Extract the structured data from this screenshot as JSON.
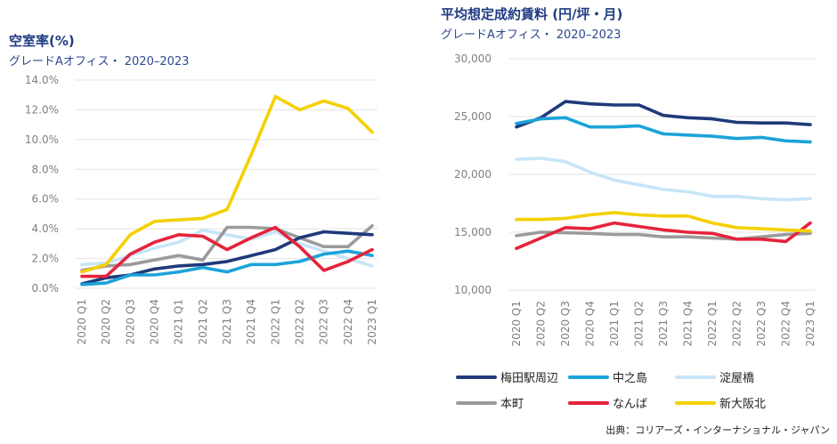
{
  "source_note": "出典：コリアーズ・インターナショナル・ジャパン",
  "colors": {
    "umeda": "#1f3a7a",
    "nakanoshima": "#1ba3d9",
    "yodoyabashi": "#c7e6f7",
    "honmachi": "#9b9b9b",
    "namba": "#e5233b",
    "shinosakakita": "#f5d000",
    "grid": "#e3e3e3",
    "axis_text": "#808080"
  },
  "chart_data": [
    {
      "type": "line",
      "title": "空室率(%)",
      "subtitle": "グレードAオフィス・ 2020–2023",
      "categories": [
        "2020 Q1",
        "2020 Q2",
        "2020 Q3",
        "2020 Q4",
        "2021 Q1",
        "2021 Q2",
        "2021 Q3",
        "2021 Q4",
        "2022 Q1",
        "2022 Q2",
        "2022 Q3",
        "2022 Q4",
        "2023 Q1"
      ],
      "ylim": [
        0,
        14
      ],
      "yticks": [
        0,
        2,
        4,
        6,
        8,
        10,
        12,
        14
      ],
      "ytick_labels": [
        "0.0%",
        "2.0%",
        "4.0%",
        "6.0%",
        "8.0%",
        "10.0%",
        "12.0%",
        "14.0%"
      ],
      "grid": true,
      "series": [
        {
          "key": "yodoyabashi",
          "name": "淀屋橋",
          "values": [
            1.6,
            1.7,
            2.2,
            2.7,
            3.1,
            3.9,
            3.6,
            3.3,
            3.8,
            3.0,
            2.5,
            2.0,
            1.5
          ]
        },
        {
          "key": "honmachi",
          "name": "本町",
          "values": [
            1.2,
            1.5,
            1.6,
            1.9,
            2.2,
            1.9,
            4.1,
            4.1,
            4.0,
            3.4,
            2.8,
            2.8,
            4.2
          ]
        },
        {
          "key": "umeda",
          "name": "梅田駅周辺",
          "values": [
            0.3,
            0.7,
            0.9,
            1.3,
            1.5,
            1.6,
            1.8,
            2.2,
            2.6,
            3.4,
            3.8,
            3.7,
            3.6
          ]
        },
        {
          "key": "nakanoshima",
          "name": "中之島",
          "values": [
            0.25,
            0.35,
            0.9,
            0.9,
            1.1,
            1.4,
            1.1,
            1.6,
            1.6,
            1.8,
            2.3,
            2.5,
            2.2
          ]
        },
        {
          "key": "namba",
          "name": "なんば",
          "values": [
            0.8,
            0.8,
            2.3,
            3.1,
            3.6,
            3.5,
            2.6,
            3.4,
            4.1,
            2.8,
            1.2,
            1.8,
            2.6
          ]
        },
        {
          "key": "shinosakakita",
          "name": "新大阪北",
          "values": [
            1.1,
            1.6,
            3.6,
            4.5,
            4.6,
            4.7,
            5.3,
            9.0,
            12.9,
            12.0,
            12.6,
            12.1,
            10.5
          ]
        }
      ]
    },
    {
      "type": "line",
      "title": "平均想定成約賃料 (円/坪・月)",
      "subtitle": "グレードAオフィス・ 2020–2023",
      "categories": [
        "2020 Q1",
        "2020 Q2",
        "2020 Q3",
        "2020 Q4",
        "2021 Q1",
        "2021 Q2",
        "2021 Q3",
        "2021 Q4",
        "2022 Q1",
        "2022 Q2",
        "2022 Q3",
        "2022 Q4",
        "2023 Q1"
      ],
      "ylim": [
        10000,
        30000
      ],
      "yticks": [
        10000,
        15000,
        20000,
        25000,
        30000
      ],
      "ytick_labels": [
        "10,000",
        "15,000",
        "20,000",
        "25,000",
        "30,000"
      ],
      "grid": true,
      "series": [
        {
          "key": "yodoyabashi",
          "name": "淀屋橋",
          "values": [
            21300,
            21400,
            21100,
            20200,
            19500,
            19100,
            18700,
            18500,
            18100,
            18100,
            17900,
            17800,
            17900
          ]
        },
        {
          "key": "honmachi",
          "name": "本町",
          "values": [
            14700,
            15000,
            14950,
            14900,
            14800,
            14800,
            14600,
            14600,
            14500,
            14400,
            14600,
            14800,
            14900
          ]
        },
        {
          "key": "umeda",
          "name": "梅田駅周辺",
          "values": [
            24100,
            24900,
            26300,
            26100,
            26000,
            26000,
            25100,
            24900,
            24800,
            24500,
            24450,
            24450,
            24300
          ]
        },
        {
          "key": "nakanoshima",
          "name": "中之島",
          "values": [
            24400,
            24800,
            24900,
            24100,
            24100,
            24200,
            23500,
            23400,
            23300,
            23100,
            23200,
            22900,
            22800
          ]
        },
        {
          "key": "namba",
          "name": "なんば",
          "values": [
            13600,
            14500,
            15400,
            15300,
            15800,
            15500,
            15200,
            15000,
            14900,
            14400,
            14400,
            14200,
            15800
          ]
        },
        {
          "key": "shinosakakita",
          "name": "新大阪北",
          "values": [
            16100,
            16100,
            16200,
            16500,
            16700,
            16500,
            16400,
            16400,
            15800,
            15400,
            15300,
            15200,
            15100
          ]
        }
      ]
    }
  ],
  "legend": [
    {
      "key": "umeda",
      "label": "梅田駅周辺"
    },
    {
      "key": "nakanoshima",
      "label": "中之島"
    },
    {
      "key": "yodoyabashi",
      "label": "淀屋橋"
    },
    {
      "key": "honmachi",
      "label": "本町"
    },
    {
      "key": "namba",
      "label": "なんば"
    },
    {
      "key": "shinosakakita",
      "label": "新大阪北"
    }
  ]
}
